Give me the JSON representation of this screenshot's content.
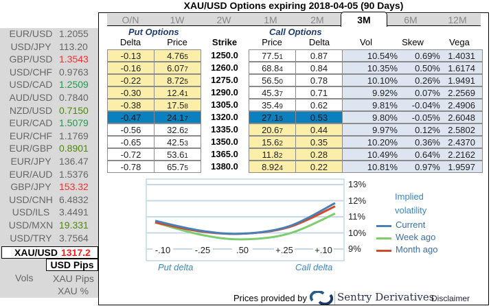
{
  "title": "XAU/USD Options expiring 2018-04-05 (90 Days)",
  "fx_rates": [
    {
      "pair": "EUR/USD",
      "value": "1.2055",
      "color": "#666666"
    },
    {
      "pair": "USD/JPY",
      "value": "113.20",
      "color": "#666666"
    },
    {
      "pair": "GBP/USD",
      "value": "1.3543",
      "color": "#ff2a2a"
    },
    {
      "pair": "USD/CHF",
      "value": "0.9763",
      "color": "#666666"
    },
    {
      "pair": "USD/CAD",
      "value": "1.2509",
      "color": "#1f9a4a"
    },
    {
      "pair": "AUD/USD",
      "value": "0.7840",
      "color": "#666666"
    },
    {
      "pair": "NZD/USD",
      "value": "0.7150",
      "color": "#4a8a00"
    },
    {
      "pair": "EUR/CAD",
      "value": "1.5079",
      "color": "#1f9a4a"
    },
    {
      "pair": "EUR/CHF",
      "value": "1.1769",
      "color": "#666666"
    },
    {
      "pair": "EUR/GBP",
      "value": "0.8901",
      "color": "#4a8a00"
    },
    {
      "pair": "EUR/JPY",
      "value": "136.47",
      "color": "#666666"
    },
    {
      "pair": "EUR/AUD",
      "value": "1.5376",
      "color": "#666666"
    },
    {
      "pair": "GBP/JPY",
      "value": "153.32",
      "color": "#ff2a2a"
    },
    {
      "pair": "USD/CNH",
      "value": "6.4832",
      "color": "#666666"
    },
    {
      "pair": "USD/ILS",
      "value": "3.4491",
      "color": "#666666"
    },
    {
      "pair": "USD/MXN",
      "value": "19.331",
      "color": "#4a8a00"
    },
    {
      "pair": "USD/TRY",
      "value": "3.7564",
      "color": "#666666"
    }
  ],
  "selected_pair": {
    "pair": "XAU/USD",
    "value": "1317.2"
  },
  "units": {
    "selected": "USD Pips",
    "vols_label": "Vols",
    "options": [
      "XAU Pips",
      "XAU %"
    ]
  },
  "tabs": [
    "O/N",
    "1W",
    "2W",
    "1M",
    "2M",
    "3M",
    "6M",
    "12M"
  ],
  "active_tab": "3M",
  "sections": {
    "put": "Put Options",
    "call": "Call Options"
  },
  "headers": [
    "Delta",
    "Price",
    "Strike",
    "Price",
    "Delta",
    "Vol",
    "Skew",
    "Vega"
  ],
  "rows": [
    {
      "pd": "-0.13",
      "pp": "4.76",
      "pps": "5",
      "strike": "1250.0",
      "cp": "77.5",
      "cps": "1",
      "cd": "0.87",
      "vol": "10.54%",
      "skew": "0.69%",
      "vega": "1.4031",
      "itm": "put"
    },
    {
      "pd": "-0.16",
      "pp": "6.07",
      "pps": "7",
      "strike": "1260.0",
      "cp": "68.8",
      "cps": "4",
      "cd": "0.84",
      "vol": "10.35%",
      "skew": "0.50%",
      "vega": "1.6174",
      "itm": "put"
    },
    {
      "pd": "-0.22",
      "pp": "8.72",
      "pps": "5",
      "strike": "1275.0",
      "cp": "56.5",
      "cps": "0",
      "cd": "0.78",
      "vol": "10.10%",
      "skew": "0.26%",
      "vega": "1.9491",
      "itm": "put"
    },
    {
      "pd": "-0.30",
      "pp": "12.4",
      "pps": "1",
      "strike": "1290.0",
      "cp": "45.3",
      "cps": "7",
      "cd": "0.71",
      "vol": "9.92%",
      "skew": "0.07%",
      "vega": "2.2569",
      "itm": "put"
    },
    {
      "pd": "-0.38",
      "pp": "17.5",
      "pps": "8",
      "strike": "1305.0",
      "cp": "35.4",
      "cps": "9",
      "cd": "0.62",
      "vol": "9.81%",
      "skew": "-0.04%",
      "vega": "2.4906",
      "itm": "put"
    },
    {
      "pd": "-0.47",
      "pp": "24.1",
      "pps": "7",
      "strike": "1320.0",
      "cp": "27.1",
      "cps": "5",
      "cd": "0.53",
      "vol": "9.80%",
      "skew": "-0.05%",
      "vega": "2.6048",
      "itm": "atm"
    },
    {
      "pd": "-0.56",
      "pp": "32.6",
      "pps": "2",
      "strike": "1335.0",
      "cp": "20.6",
      "cps": "7",
      "cd": "0.44",
      "vol": "9.97%",
      "skew": "0.12%",
      "vega": "2.5802",
      "itm": "call"
    },
    {
      "pd": "-0.65",
      "pp": "42.5",
      "pps": "3",
      "strike": "1350.0",
      "cp": "15.6",
      "cps": "2",
      "cd": "0.35",
      "vol": "10.20%",
      "skew": "0.36%",
      "vega": "2.4370",
      "itm": "call"
    },
    {
      "pd": "-0.72",
      "pp": "53.6",
      "pps": "1",
      "strike": "1365.0",
      "cp": "11.8",
      "cps": "2",
      "cd": "0.28",
      "vol": "10.49%",
      "skew": "0.64%",
      "vega": "2.2162",
      "itm": "call"
    },
    {
      "pd": "-0.78",
      "pp": "65.7",
      "pps": "5",
      "strike": "1380.0",
      "cp": "8.92",
      "cps": "4",
      "cd": "0.22",
      "vol": "10.81%",
      "skew": "0.97%",
      "vega": "1.9597",
      "itm": "call"
    }
  ],
  "chart_data": {
    "type": "line",
    "title": "Implied volatility",
    "categories": [
      "-.10",
      "-.25",
      ".50",
      "+.25",
      "+.10"
    ],
    "xlabel_left": "Put delta",
    "xlabel_right": "Call delta",
    "y_ticks": [
      "13%",
      "12%",
      "11%",
      "10%",
      "9%"
    ],
    "ylim": [
      9,
      13
    ],
    "series": [
      {
        "name": "Current",
        "color": "#4a7fb5",
        "values": [
          10.75,
          10.15,
          9.95,
          10.4,
          11.85
        ]
      },
      {
        "name": "Week ago",
        "color": "#7dcc6e",
        "values": [
          10.65,
          9.9,
          9.6,
          9.95,
          11.2
        ]
      },
      {
        "name": "Month ago",
        "color": "#d24a2a",
        "values": [
          10.65,
          10.1,
          9.95,
          10.35,
          11.65
        ]
      }
    ]
  },
  "footer": {
    "provided_by": "Prices provided by",
    "brand": "Sentry Derivatives",
    "disclaimer": "Disclaimer"
  }
}
